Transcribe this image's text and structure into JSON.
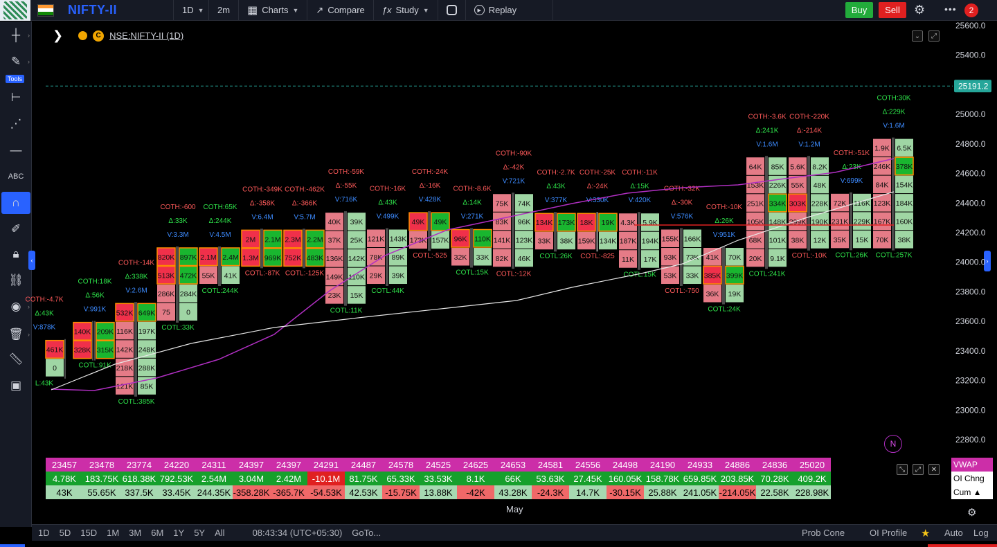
{
  "topbar": {
    "symbol": "NIFTY-II",
    "interval": "1D",
    "minutes": "2m",
    "charts_label": "Charts",
    "compare_label": "Compare",
    "study_label": "Study",
    "replay_label": "Replay",
    "buy_label": "Buy",
    "sell_label": "Sell",
    "notification_count": "2",
    "colors": {
      "buy": "#22ab3b",
      "sell": "#e02020",
      "symbol": "#2962ff"
    }
  },
  "left_toolbar": {
    "tools_label": "Tools",
    "icons": [
      "crosshair-icon",
      "pencil-icon",
      "measure-icon",
      "pattern-icon",
      "horizontal-line-icon",
      "text-icon",
      "magnet-icon",
      "brush-icon",
      "lock-icon",
      "link-icon",
      "eye-icon",
      "trash-icon",
      "ruler-icon",
      "screenshot-icon"
    ]
  },
  "legend": {
    "symbol_text": "NSE:NIFTY-II (1D)",
    "badge": "C"
  },
  "chart_data": {
    "type": "table",
    "kind": "footprint-candles",
    "price_axis": [
      25600.0,
      25400.0,
      25200.0,
      25000.0,
      24800.0,
      24600.0,
      24400.0,
      24200.0,
      24000.0,
      23800.0,
      23600.0,
      23400.0,
      23200.0,
      23000.0,
      22800.0
    ],
    "last_price": "25191.2",
    "x_axis_label": "May",
    "colors": {
      "buy": "#19b62f",
      "sell": "#f0304a",
      "buy_light": "#9fd6a4",
      "sell_light": "#e57b87",
      "vwap": "#b02fc2",
      "ma": "#e8e8e8",
      "last_price": "#26a69a",
      "poc_border": "#ff8c00"
    },
    "candles": [
      {
        "top": "COTH:-4.7K",
        "d": "Δ:43K",
        "v": "V:878K",
        "bot": "L:43K",
        "cells": [
          [
            "461K",
            "sell"
          ],
          [
            "0",
            "buy"
          ]
        ]
      },
      {
        "top": "",
        "d": "",
        "v": "",
        "bot": "",
        "cells": [
          [
            "140K",
            "sell"
          ],
          [
            "328K",
            "sell"
          ]
        ]
      },
      {
        "top": "COTH:18K",
        "d": "Δ:56K",
        "v": "V:991K",
        "bot": "COTL:91K",
        "cells": [
          [
            "209K",
            "buy"
          ],
          [
            "315K",
            "buy"
          ]
        ]
      },
      {
        "top": "",
        "d": "",
        "v": "",
        "bot": "",
        "cells": [
          [
            "532K",
            "sell"
          ],
          [
            "116K",
            "sell"
          ],
          [
            "142K",
            "sell"
          ],
          [
            "218K",
            "sell"
          ],
          [
            "121K",
            "sell"
          ]
        ]
      },
      {
        "top": "COTH:-14K",
        "d": "Δ:338K",
        "v": "V:2.6M",
        "bot": "COTL:385K",
        "cells": [
          [
            "649K",
            "buy"
          ],
          [
            "197K",
            "buy"
          ],
          [
            "248K",
            "buy"
          ],
          [
            "288K",
            "buy"
          ],
          [
            "85K",
            "buy"
          ]
        ]
      },
      {
        "top": "",
        "d": "",
        "v": "",
        "bot": "",
        "cells": [
          [
            "820K",
            "sell"
          ],
          [
            "513K",
            "sell"
          ],
          [
            "286K",
            "sell"
          ],
          [
            "75",
            "sell"
          ]
        ]
      },
      {
        "top": "COTH:-600",
        "d": "Δ:33K",
        "v": "V:3.3M",
        "bot": "COTL:33K",
        "cells": [
          [
            "897K",
            "buy"
          ],
          [
            "472K",
            "buy"
          ],
          [
            "284K",
            "buy"
          ],
          [
            "0",
            "buy"
          ]
        ]
      },
      {
        "top": "",
        "d": "",
        "v": "",
        "bot": "",
        "cells": [
          [
            "2.1M",
            "sell"
          ],
          [
            "55K",
            "sell"
          ]
        ]
      },
      {
        "top": "COTH:65K",
        "d": "Δ:244K",
        "v": "V:4.5M",
        "bot": "COTL:244K",
        "cells": [
          [
            "2.4M",
            "buy"
          ],
          [
            "41K",
            "buy"
          ]
        ]
      },
      {
        "top": "",
        "d": "",
        "v": "",
        "bot": "",
        "cells": [
          [
            "2M",
            "sell"
          ],
          [
            "1.3M",
            "sell"
          ]
        ]
      },
      {
        "top": "COTH:-349K",
        "d": "Δ:-358K",
        "v": "V:6.4M",
        "bot": "COTL:-87K",
        "cells": [
          [
            "2.1M",
            "buy"
          ],
          [
            "969K",
            "buy"
          ]
        ]
      },
      {
        "top": "",
        "d": "",
        "v": "",
        "bot": "",
        "cells": [
          [
            "2.3M",
            "sell"
          ],
          [
            "752K",
            "sell"
          ]
        ]
      },
      {
        "top": "COTH:-462K",
        "d": "Δ:-366K",
        "v": "V:5.7M",
        "bot": "COTL:-125K",
        "cells": [
          [
            "2.2M",
            "buy"
          ],
          [
            "483K",
            "buy"
          ]
        ]
      },
      {
        "top": "",
        "d": "",
        "v": "",
        "bot": "",
        "cells": [
          [
            "40K",
            "sell"
          ],
          [
            "37K",
            "sell"
          ],
          [
            "136K",
            "sell"
          ],
          [
            "149K",
            "sell"
          ],
          [
            "23K",
            "sell"
          ]
        ]
      },
      {
        "top": "COTH:-59K",
        "d": "Δ:-55K",
        "v": "V:716K",
        "bot": "COTL:11K",
        "cells": [
          [
            "39K",
            "buy"
          ],
          [
            "25K",
            "buy"
          ],
          [
            "142K",
            "buy"
          ],
          [
            "110K",
            "buy"
          ],
          [
            "15K",
            "buy"
          ]
        ]
      },
      {
        "top": "",
        "d": "",
        "v": "",
        "bot": "",
        "cells": [
          [
            "121K",
            "sell"
          ],
          [
            "78K",
            "sell"
          ],
          [
            "29K",
            "sell"
          ]
        ]
      },
      {
        "top": "COTH:-16K",
        "d": "Δ:43K",
        "v": "V:499K",
        "bot": "COTL:44K",
        "cells": [
          [
            "143K",
            "buy"
          ],
          [
            "89K",
            "buy"
          ],
          [
            "39K",
            "buy"
          ]
        ]
      },
      {
        "top": "",
        "d": "",
        "v": "",
        "bot": "",
        "cells": [
          [
            "49K",
            "sell"
          ],
          [
            "173K",
            "sell"
          ]
        ]
      },
      {
        "top": "COTH:-24K",
        "d": "Δ:-16K",
        "v": "V:428K",
        "bot": "COTL:-525",
        "cells": [
          [
            "49K",
            "buy"
          ],
          [
            "157K",
            "buy"
          ]
        ]
      },
      {
        "top": "",
        "d": "",
        "v": "",
        "bot": "",
        "cells": [
          [
            "96K",
            "sell"
          ],
          [
            "32K",
            "sell"
          ]
        ]
      },
      {
        "top": "COTH:-8.6K",
        "d": "Δ:14K",
        "v": "V:271K",
        "bot": "COTL:15K",
        "cells": [
          [
            "110K",
            "buy"
          ],
          [
            "33K",
            "buy"
          ]
        ]
      },
      {
        "top": "",
        "d": "",
        "v": "",
        "bot": "",
        "cells": [
          [
            "75K",
            "sell"
          ],
          [
            "83K",
            "sell"
          ],
          [
            "141K",
            "sell"
          ],
          [
            "82K",
            "sell"
          ]
        ]
      },
      {
        "top": "COTH:-90K",
        "d": "Δ:-42K",
        "v": "V:721K",
        "bot": "COTL:-12K",
        "cells": [
          [
            "74K",
            "buy"
          ],
          [
            "96K",
            "buy"
          ],
          [
            "123K",
            "buy"
          ],
          [
            "46K",
            "buy"
          ]
        ]
      },
      {
        "top": "",
        "d": "",
        "v": "",
        "bot": "",
        "cells": [
          [
            "134K",
            "sell"
          ],
          [
            "33K",
            "sell"
          ]
        ]
      },
      {
        "top": "COTH:-2.7K",
        "d": "Δ:43K",
        "v": "V:377K",
        "bot": "COTL:26K",
        "cells": [
          [
            "173K",
            "buy"
          ],
          [
            "38K",
            "buy"
          ]
        ]
      },
      {
        "top": "",
        "d": "",
        "v": "",
        "bot": "",
        "cells": [
          [
            "18K",
            "sell"
          ],
          [
            "159K",
            "sell"
          ]
        ]
      },
      {
        "top": "COTH:-25K",
        "d": "Δ:-24K",
        "v": "V:330K",
        "bot": "COTL:-825",
        "cells": [
          [
            "19K",
            "buy"
          ],
          [
            "134K",
            "buy"
          ]
        ]
      },
      {
        "top": "",
        "d": "",
        "v": "",
        "bot": "",
        "cells": [
          [
            "4.3K",
            "sell"
          ],
          [
            "187K",
            "sell"
          ],
          [
            "11K",
            "sell"
          ]
        ]
      },
      {
        "top": "COTH:-11K",
        "d": "Δ:15K",
        "v": "V:420K",
        "bot": "COTL:15K",
        "cells": [
          [
            "5.9K",
            "buy"
          ],
          [
            "194K",
            "buy"
          ],
          [
            "17K",
            "buy"
          ]
        ]
      },
      {
        "top": "",
        "d": "",
        "v": "",
        "bot": "",
        "cells": [
          [
            "155K",
            "sell"
          ],
          [
            "93K",
            "sell"
          ],
          [
            "53K",
            "sell"
          ]
        ]
      },
      {
        "top": "COTH:-32K",
        "d": "Δ:-30K",
        "v": "V:576K",
        "bot": "COTL:-750",
        "cells": [
          [
            "166K",
            "buy"
          ],
          [
            "73K",
            "buy"
          ],
          [
            "33K",
            "buy"
          ]
        ]
      },
      {
        "top": "",
        "d": "",
        "v": "",
        "bot": "",
        "cells": [
          [
            "41K",
            "sell"
          ],
          [
            "385K",
            "sell"
          ],
          [
            "36K",
            "sell"
          ]
        ]
      },
      {
        "top": "COTH:-10K",
        "d": "Δ:26K",
        "v": "V:951K",
        "bot": "COTL:24K",
        "cells": [
          [
            "70K",
            "buy"
          ],
          [
            "399K",
            "buy"
          ],
          [
            "19K",
            "buy"
          ]
        ]
      },
      {
        "top": "",
        "d": "",
        "v": "",
        "bot": "",
        "cells": [
          [
            "64K",
            "sell"
          ],
          [
            "153K",
            "sell"
          ],
          [
            "251K",
            "sell"
          ],
          [
            "105K",
            "sell"
          ],
          [
            "68K",
            "sell"
          ],
          [
            "20K",
            "sell"
          ]
        ]
      },
      {
        "top": "COTH:-3.6K",
        "d": "Δ:241K",
        "v": "V:1.6M",
        "bot": "COTL:241K",
        "cells": [
          [
            "85K",
            "buy"
          ],
          [
            "226K",
            "buy"
          ],
          [
            "334K",
            "buy"
          ],
          [
            "148K",
            "buy"
          ],
          [
            "101K",
            "buy"
          ],
          [
            "9.1K",
            "buy"
          ]
        ]
      },
      {
        "top": "",
        "d": "",
        "v": "",
        "bot": "",
        "cells": [
          [
            "5.6K",
            "sell"
          ],
          [
            "55K",
            "sell"
          ],
          [
            "303K",
            "sell"
          ],
          [
            "299K",
            "sell"
          ],
          [
            "38K",
            "sell"
          ]
        ]
      },
      {
        "top": "COTH:-220K",
        "d": "Δ:-214K",
        "v": "V:1.2M",
        "bot": "COTL:-10K",
        "cells": [
          [
            "8.2K",
            "buy"
          ],
          [
            "48K",
            "buy"
          ],
          [
            "228K",
            "buy"
          ],
          [
            "190K",
            "buy"
          ],
          [
            "12K",
            "buy"
          ]
        ]
      },
      {
        "top": "",
        "d": "",
        "v": "",
        "bot": "",
        "cells": [
          [
            "72K",
            "sell"
          ],
          [
            "231K",
            "sell"
          ],
          [
            "35K",
            "sell"
          ]
        ]
      },
      {
        "top": "COTH:-51K",
        "d": "Δ:23K",
        "v": "V:699K",
        "bot": "COTL:26K",
        "cells": [
          [
            "116K",
            "buy"
          ],
          [
            "229K",
            "buy"
          ],
          [
            "15K",
            "buy"
          ]
        ]
      },
      {
        "top": "",
        "d": "",
        "v": "",
        "bot": "",
        "cells": [
          [
            "1.9K",
            "sell"
          ],
          [
            "246K",
            "sell"
          ],
          [
            "84K",
            "sell"
          ],
          [
            "123K",
            "sell"
          ],
          [
            "167K",
            "sell"
          ],
          [
            "70K",
            "sell"
          ]
        ]
      },
      {
        "top": "COTH:30K",
        "d": "Δ:229K",
        "v": "V:1.6M",
        "bot": "COTL:257K",
        "cells": [
          [
            "6.5K",
            "buy"
          ],
          [
            "378K",
            "buy"
          ],
          [
            "154K",
            "buy"
          ],
          [
            "184K",
            "buy"
          ],
          [
            "160K",
            "buy"
          ],
          [
            "38K",
            "buy"
          ]
        ]
      }
    ]
  },
  "stats": {
    "labels": [
      "VWAP",
      "OI Chng",
      "Cum ▲"
    ],
    "vwap": [
      "23457",
      "23478",
      "23774",
      "24220",
      "24311",
      "24397",
      "24397",
      "24291",
      "24487",
      "24578",
      "24525",
      "24625",
      "24653",
      "24581",
      "24556",
      "24498",
      "24190",
      "24933",
      "24886",
      "24836",
      "25020"
    ],
    "oi_chng": [
      "4.78K",
      "183.75K",
      "618.38K",
      "792.53K",
      "2.54M",
      "3.04M",
      "2.42M",
      "-10.1M",
      "81.75K",
      "65.33K",
      "33.53K",
      "8.1K",
      "66K",
      "53.63K",
      "27.45K",
      "160.05K",
      "158.78K",
      "659.85K",
      "203.85K",
      "70.28K",
      "409.2K"
    ],
    "cum": [
      "43K",
      "55.65K",
      "337.5K",
      "33.45K",
      "244.35K",
      "-358.28K",
      "-365.7K",
      "-54.53K",
      "42.53K",
      "-15.75K",
      "13.88K",
      "-42K",
      "43.28K",
      "-24.3K",
      "14.7K",
      "-30.15K",
      "25.88K",
      "241.05K",
      "-214.05K",
      "22.58K",
      "228.98K"
    ]
  },
  "bottombar": {
    "ranges": [
      "1D",
      "5D",
      "15D",
      "1M",
      "3M",
      "6M",
      "1Y",
      "5Y",
      "All"
    ],
    "time": "08:43:34 (UTC+05:30)",
    "goto": "GoTo...",
    "prob_cone": "Prob Cone",
    "oi_profile": "OI Profile",
    "auto": "Auto",
    "log": "Log"
  }
}
